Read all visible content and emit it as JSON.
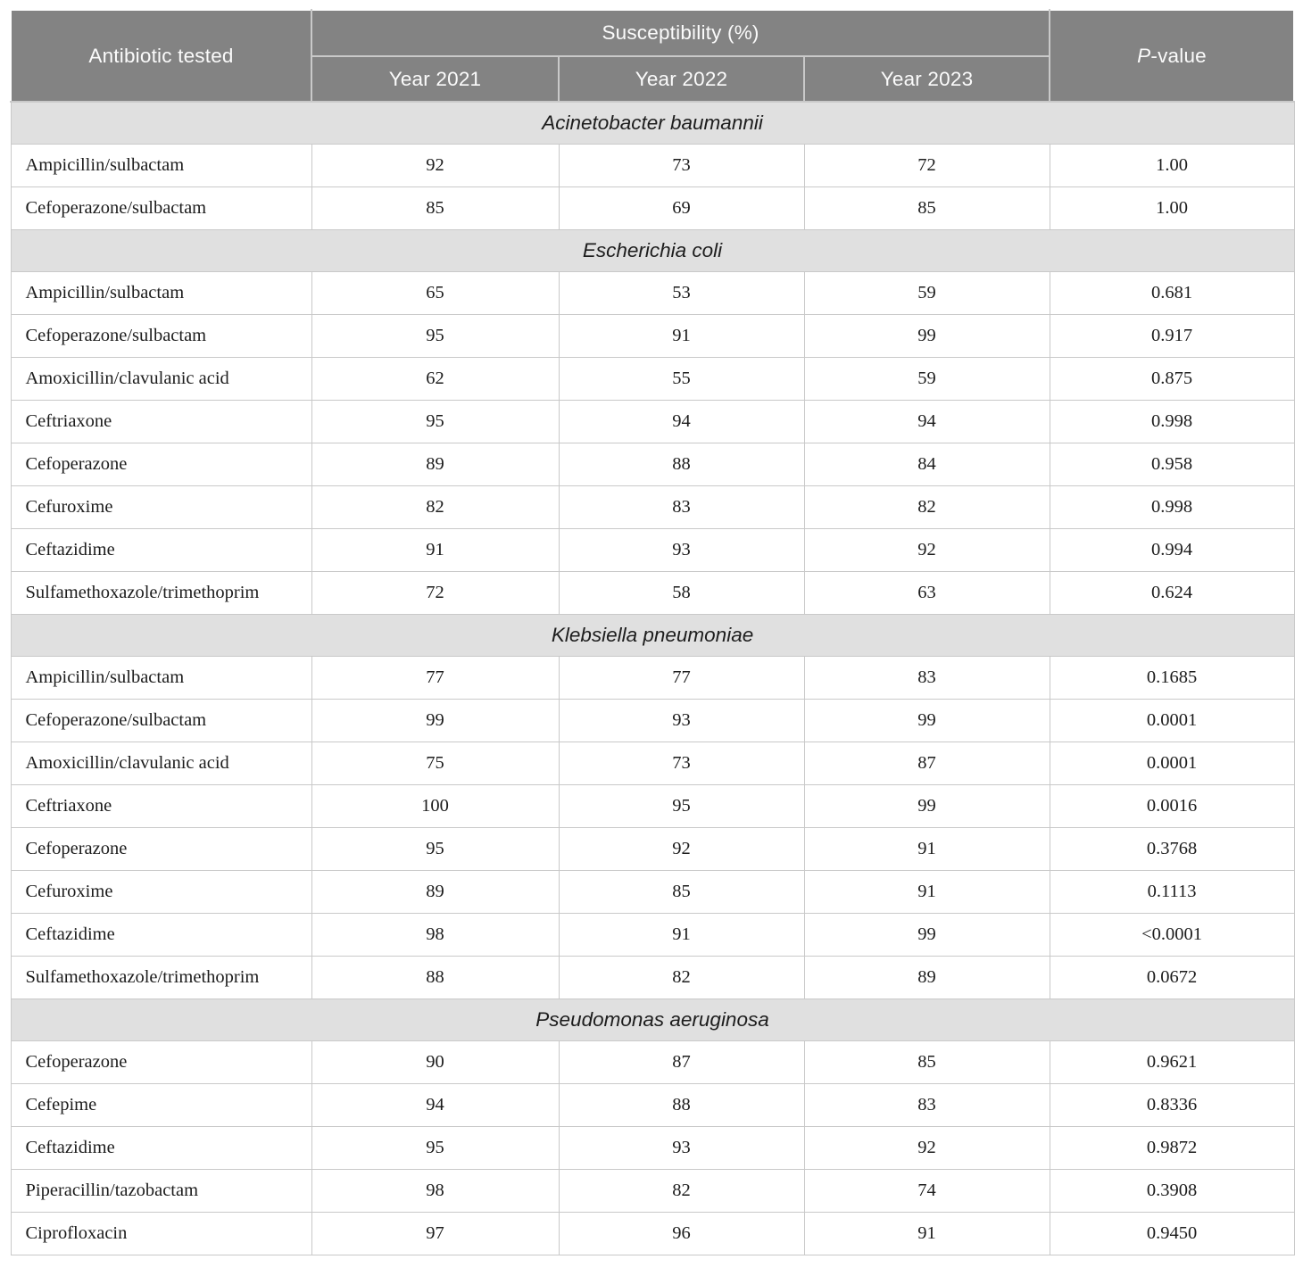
{
  "table": {
    "header": {
      "antibiotic": "Antibiotic tested",
      "susceptibility": "Susceptibility (%)",
      "years": [
        "Year 2021",
        "Year 2022",
        "Year 2023"
      ],
      "pvalue_italic": "P",
      "pvalue_suffix": "-value"
    },
    "sections": [
      {
        "species": "Acinetobacter baumannii",
        "rows": [
          {
            "antibiotic": "Ampicillin/sulbactam",
            "y2021": "92",
            "y2022": "73",
            "y2023": "72",
            "p": "1.00"
          },
          {
            "antibiotic": "Cefoperazone/sulbactam",
            "y2021": "85",
            "y2022": "69",
            "y2023": "85",
            "p": "1.00"
          }
        ]
      },
      {
        "species": "Escherichia coli",
        "rows": [
          {
            "antibiotic": "Ampicillin/sulbactam",
            "y2021": "65",
            "y2022": "53",
            "y2023": "59",
            "p": "0.681"
          },
          {
            "antibiotic": "Cefoperazone/sulbactam",
            "y2021": "95",
            "y2022": "91",
            "y2023": "99",
            "p": "0.917"
          },
          {
            "antibiotic": "Amoxicillin/clavulanic acid",
            "y2021": "62",
            "y2022": "55",
            "y2023": "59",
            "p": "0.875"
          },
          {
            "antibiotic": "Ceftriaxone",
            "y2021": "95",
            "y2022": "94",
            "y2023": "94",
            "p": "0.998"
          },
          {
            "antibiotic": "Cefoperazone",
            "y2021": "89",
            "y2022": "88",
            "y2023": "84",
            "p": "0.958"
          },
          {
            "antibiotic": "Cefuroxime",
            "y2021": "82",
            "y2022": "83",
            "y2023": "82",
            "p": "0.998"
          },
          {
            "antibiotic": "Ceftazidime",
            "y2021": "91",
            "y2022": "93",
            "y2023": "92",
            "p": "0.994"
          },
          {
            "antibiotic": "Sulfamethoxazole/trimethoprim",
            "y2021": "72",
            "y2022": "58",
            "y2023": "63",
            "p": "0.624"
          }
        ]
      },
      {
        "species": "Klebsiella pneumoniae",
        "rows": [
          {
            "antibiotic": "Ampicillin/sulbactam",
            "y2021": "77",
            "y2022": "77",
            "y2023": "83",
            "p": "0.1685"
          },
          {
            "antibiotic": "Cefoperazone/sulbactam",
            "y2021": "99",
            "y2022": "93",
            "y2023": "99",
            "p": "0.0001"
          },
          {
            "antibiotic": "Amoxicillin/clavulanic acid",
            "y2021": "75",
            "y2022": "73",
            "y2023": "87",
            "p": "0.0001"
          },
          {
            "antibiotic": "Ceftriaxone",
            "y2021": "100",
            "y2022": "95",
            "y2023": "99",
            "p": "0.0016"
          },
          {
            "antibiotic": "Cefoperazone",
            "y2021": "95",
            "y2022": "92",
            "y2023": "91",
            "p": "0.3768"
          },
          {
            "antibiotic": "Cefuroxime",
            "y2021": "89",
            "y2022": "85",
            "y2023": "91",
            "p": "0.1113"
          },
          {
            "antibiotic": "Ceftazidime",
            "y2021": "98",
            "y2022": "91",
            "y2023": "99",
            "p": "<0.0001"
          },
          {
            "antibiotic": "Sulfamethoxazole/trimethoprim",
            "y2021": "88",
            "y2022": "82",
            "y2023": "89",
            "p": "0.0672"
          }
        ]
      },
      {
        "species": "Pseudomonas aeruginosa",
        "rows": [
          {
            "antibiotic": "Cefoperazone",
            "y2021": "90",
            "y2022": "87",
            "y2023": "85",
            "p": "0.9621"
          },
          {
            "antibiotic": "Cefepime",
            "y2021": "94",
            "y2022": "88",
            "y2023": "83",
            "p": "0.8336"
          },
          {
            "antibiotic": "Ceftazidime",
            "y2021": "95",
            "y2022": "93",
            "y2023": "92",
            "p": "0.9872"
          },
          {
            "antibiotic": "Piperacillin/tazobactam",
            "y2021": "98",
            "y2022": "82",
            "y2023": "74",
            "p": "0.3908"
          },
          {
            "antibiotic": "Ciprofloxacin",
            "y2021": "97",
            "y2022": "96",
            "y2023": "91",
            "p": "0.9450"
          }
        ]
      }
    ]
  },
  "colors": {
    "header_background": "#838383",
    "header_text": "#fbfbfb",
    "section_band_background": "#e0e0e0",
    "body_text": "#1c1c1c",
    "grid_line": "#c9c9c9",
    "page_background": "#ffffff"
  }
}
